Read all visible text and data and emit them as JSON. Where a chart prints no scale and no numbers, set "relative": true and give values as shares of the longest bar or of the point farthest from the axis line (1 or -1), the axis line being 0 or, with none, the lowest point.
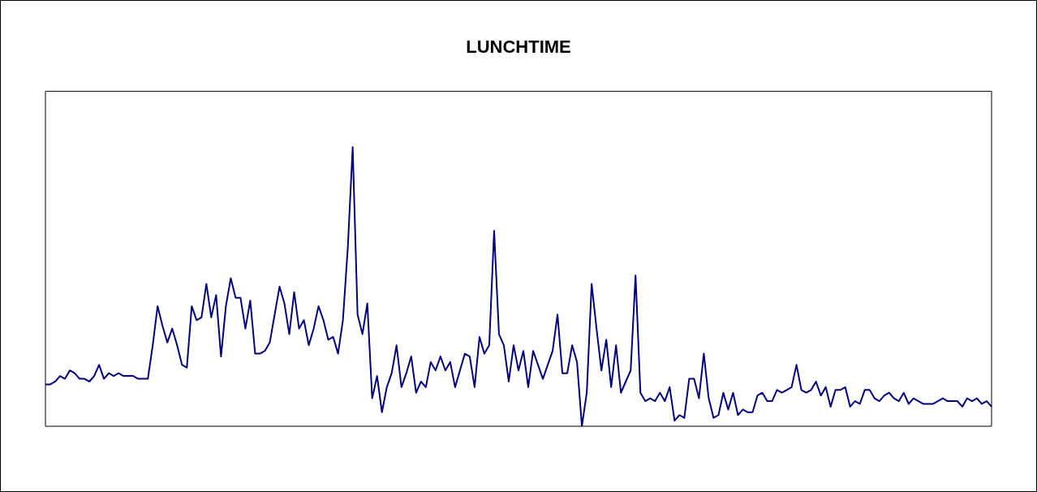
{
  "chart_data": {
    "type": "line",
    "title": "LUNCHTIME",
    "relative": true,
    "grid": false,
    "legend": false,
    "marker": "none",
    "line_style": "solid",
    "categories": [
      null,
      null,
      null,
      null,
      null,
      null,
      null,
      null,
      null,
      null,
      null,
      null,
      null,
      null,
      null,
      null,
      null,
      null,
      null,
      null,
      null,
      null,
      null,
      null,
      null,
      null,
      null,
      null,
      null,
      null,
      null,
      null,
      null,
      null,
      null,
      null,
      null,
      null,
      null,
      null,
      null,
      null,
      null,
      null,
      null,
      null,
      null,
      null,
      null,
      null,
      null,
      null,
      null,
      null,
      null,
      null,
      null,
      null,
      null,
      null,
      null,
      null,
      null,
      null,
      null,
      null,
      null,
      null,
      null,
      null,
      null,
      null,
      null,
      null,
      null,
      null,
      null,
      null,
      null,
      null,
      null,
      null,
      null,
      null,
      null,
      null,
      null,
      null,
      null,
      null,
      null,
      null,
      null,
      null,
      null,
      null,
      null,
      null,
      null,
      null,
      null,
      null,
      null,
      null,
      null,
      null,
      null,
      null,
      null,
      null,
      null,
      null,
      null,
      null,
      null,
      null,
      null,
      null,
      null,
      null,
      null,
      null,
      null,
      null,
      null,
      null,
      null,
      null,
      null,
      null,
      null,
      null,
      null,
      null,
      null,
      null,
      null,
      null,
      null,
      null,
      null,
      null,
      null,
      null,
      null,
      null,
      null,
      null,
      null,
      null,
      null,
      null,
      null,
      null,
      null,
      null,
      null,
      null,
      null,
      null,
      null,
      null,
      null,
      null,
      null,
      null,
      null,
      null,
      null,
      null,
      null,
      null,
      null,
      null,
      null,
      null,
      null,
      null,
      null,
      null,
      null,
      null,
      null,
      null,
      null,
      null,
      null,
      null,
      null,
      null,
      null,
      null,
      null,
      null,
      null
    ],
    "series": [
      {
        "color": "#000080",
        "values": [
          0.15,
          0.15,
          0.16,
          0.18,
          0.17,
          0.2,
          0.19,
          0.17,
          0.17,
          0.16,
          0.18,
          0.22,
          0.17,
          0.19,
          0.18,
          0.19,
          0.18,
          0.18,
          0.18,
          0.17,
          0.17,
          0.17,
          0.29,
          0.43,
          0.36,
          0.3,
          0.35,
          0.29,
          0.22,
          0.21,
          0.43,
          0.38,
          0.39,
          0.51,
          0.39,
          0.47,
          0.25,
          0.43,
          0.53,
          0.46,
          0.46,
          0.35,
          0.45,
          0.26,
          0.26,
          0.27,
          0.3,
          0.4,
          0.5,
          0.44,
          0.33,
          0.48,
          0.35,
          0.38,
          0.29,
          0.35,
          0.43,
          0.38,
          0.31,
          0.32,
          0.26,
          0.38,
          0.64,
          1,
          0.4,
          0.33,
          0.44,
          0.1,
          0.18,
          0.05,
          0.14,
          0.19,
          0.29,
          0.14,
          0.19,
          0.25,
          0.12,
          0.16,
          0.14,
          0.23,
          0.2,
          0.25,
          0.2,
          0.23,
          0.14,
          0.2,
          0.26,
          0.25,
          0.14,
          0.32,
          0.26,
          0.29,
          0.7,
          0.33,
          0.29,
          0.16,
          0.29,
          0.2,
          0.27,
          0.14,
          0.27,
          0.22,
          0.17,
          0.22,
          0.27,
          0.4,
          0.19,
          0.19,
          0.29,
          0.23,
          0,
          0.12,
          0.51,
          0.35,
          0.2,
          0.31,
          0.14,
          0.29,
          0.12,
          0.16,
          0.2,
          0.54,
          0.12,
          0.09,
          0.1,
          0.09,
          0.12,
          0.09,
          0.14,
          0.02,
          0.04,
          0.03,
          0.17,
          0.17,
          0.1,
          0.26,
          0.1,
          0.03,
          0.04,
          0.12,
          0.06,
          0.12,
          0.04,
          0.06,
          0.05,
          0.05,
          0.11,
          0.12,
          0.09,
          0.09,
          0.13,
          0.12,
          0.13,
          0.14,
          0.22,
          0.13,
          0.12,
          0.13,
          0.16,
          0.11,
          0.14,
          0.07,
          0.13,
          0.13,
          0.14,
          0.07,
          0.09,
          0.08,
          0.13,
          0.13,
          0.1,
          0.09,
          0.11,
          0.12,
          0.1,
          0.09,
          0.12,
          0.08,
          0.1,
          0.09,
          0.08,
          0.08,
          0.08,
          0.09,
          0.1,
          0.09,
          0.09,
          0.09,
          0.07,
          0.1,
          0.09,
          0.1,
          0.08,
          0.09,
          0.07
        ]
      }
    ]
  }
}
